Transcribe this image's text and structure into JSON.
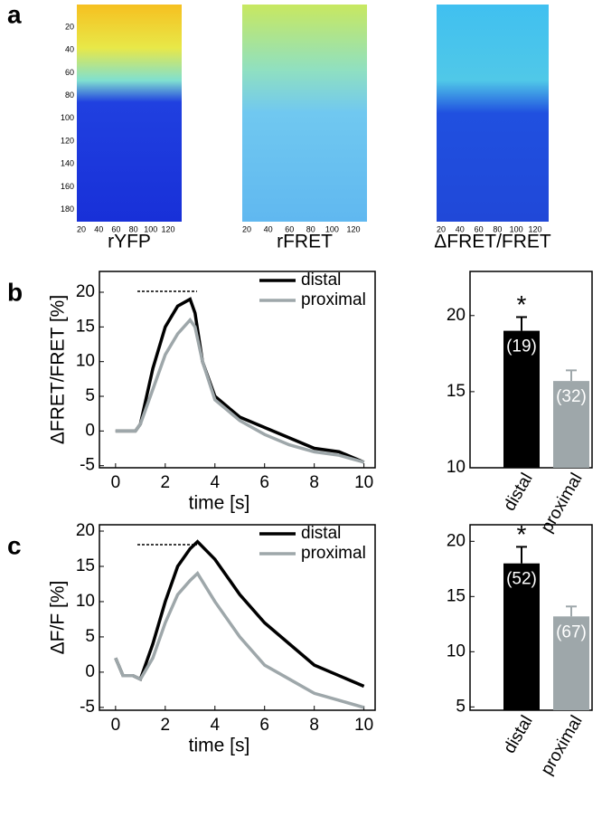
{
  "panel_labels": [
    "a",
    "b",
    "c"
  ],
  "images": [
    {
      "label": "rYFP",
      "yticks": [
        20,
        40,
        60,
        80,
        100,
        120,
        140,
        160,
        180
      ],
      "xticks": [
        20,
        40,
        60,
        80,
        100,
        120
      ]
    },
    {
      "label": "rFRET",
      "xticks": [
        20,
        40,
        60,
        80,
        100,
        120
      ]
    },
    {
      "label": "ΔFRET/FRET",
      "xticks": [
        20,
        40,
        60,
        80,
        100,
        120
      ]
    }
  ],
  "chart_data": [
    {
      "type": "line",
      "ylabel": "ΔFRET/FRET [%]",
      "xlabel": "time [s]",
      "x": [
        0,
        0.5,
        0.8,
        1,
        1.5,
        2,
        2.5,
        3,
        3.2,
        3.5,
        4,
        5,
        6,
        7,
        8,
        9,
        10
      ],
      "series": [
        {
          "name": "distal",
          "color": "#000000",
          "values": [
            0,
            0,
            0,
            1,
            9,
            15,
            18,
            19,
            17,
            10,
            5,
            2,
            0.5,
            -1,
            -2.5,
            -3,
            -4.5
          ]
        },
        {
          "name": "proximal",
          "color": "#9ea7aa",
          "values": [
            0,
            0,
            0,
            1,
            6,
            11,
            14,
            16,
            15,
            10,
            4.5,
            1.5,
            -0.5,
            -2,
            -3,
            -3.5,
            -4.5
          ]
        }
      ],
      "xlim": [
        -0.65,
        10.45
      ],
      "ylim": [
        -5.3,
        23
      ],
      "xticks": [
        0,
        2,
        4,
        6,
        8,
        10
      ],
      "yticks": [
        -5,
        0,
        5,
        10,
        15,
        20
      ],
      "legend": "upper right"
    },
    {
      "type": "bar",
      "categories": [
        "distal",
        "proximal"
      ],
      "values": [
        19,
        15.7
      ],
      "errors": [
        0.9,
        0.7
      ],
      "colors": [
        "#000000",
        "#9ea7aa"
      ],
      "n_labels": [
        "(19)",
        "(32)"
      ],
      "significance": "*",
      "ylim": [
        10,
        22.9
      ],
      "yticks": [
        10,
        15,
        20
      ]
    },
    {
      "type": "line",
      "ylabel": "ΔF/F [%]",
      "xlabel": "time [s]",
      "x": [
        0,
        0.3,
        0.7,
        1,
        1.5,
        2,
        2.5,
        3,
        3.3,
        4,
        5,
        6,
        7,
        8,
        9,
        10
      ],
      "series": [
        {
          "name": "distal",
          "color": "#000000",
          "values": [
            2,
            -0.5,
            -0.5,
            -1,
            4,
            10,
            15,
            17.5,
            18.5,
            16,
            11,
            7,
            4,
            1,
            -0.5,
            -2
          ]
        },
        {
          "name": "proximal",
          "color": "#9ea7aa",
          "values": [
            2,
            -0.5,
            -0.5,
            -1,
            2,
            7,
            11,
            13,
            14,
            10,
            5,
            1,
            -1,
            -3,
            -4,
            -5
          ]
        }
      ],
      "xlim": [
        -0.65,
        10.45
      ],
      "ylim": [
        -5.4,
        20.9
      ],
      "xticks": [
        0,
        2,
        4,
        6,
        8,
        10
      ],
      "yticks": [
        -5,
        0,
        5,
        10,
        15,
        20
      ],
      "legend": "upper right"
    },
    {
      "type": "bar",
      "categories": [
        "distal",
        "proximal"
      ],
      "values": [
        18,
        13.2
      ],
      "errors": [
        1.5,
        0.9
      ],
      "colors": [
        "#000000",
        "#9ea7aa"
      ],
      "n_labels": [
        "(52)",
        "(67)"
      ],
      "significance": "*",
      "ylim": [
        4.7,
        21.5
      ],
      "yticks": [
        5,
        10,
        15,
        20
      ]
    }
  ]
}
